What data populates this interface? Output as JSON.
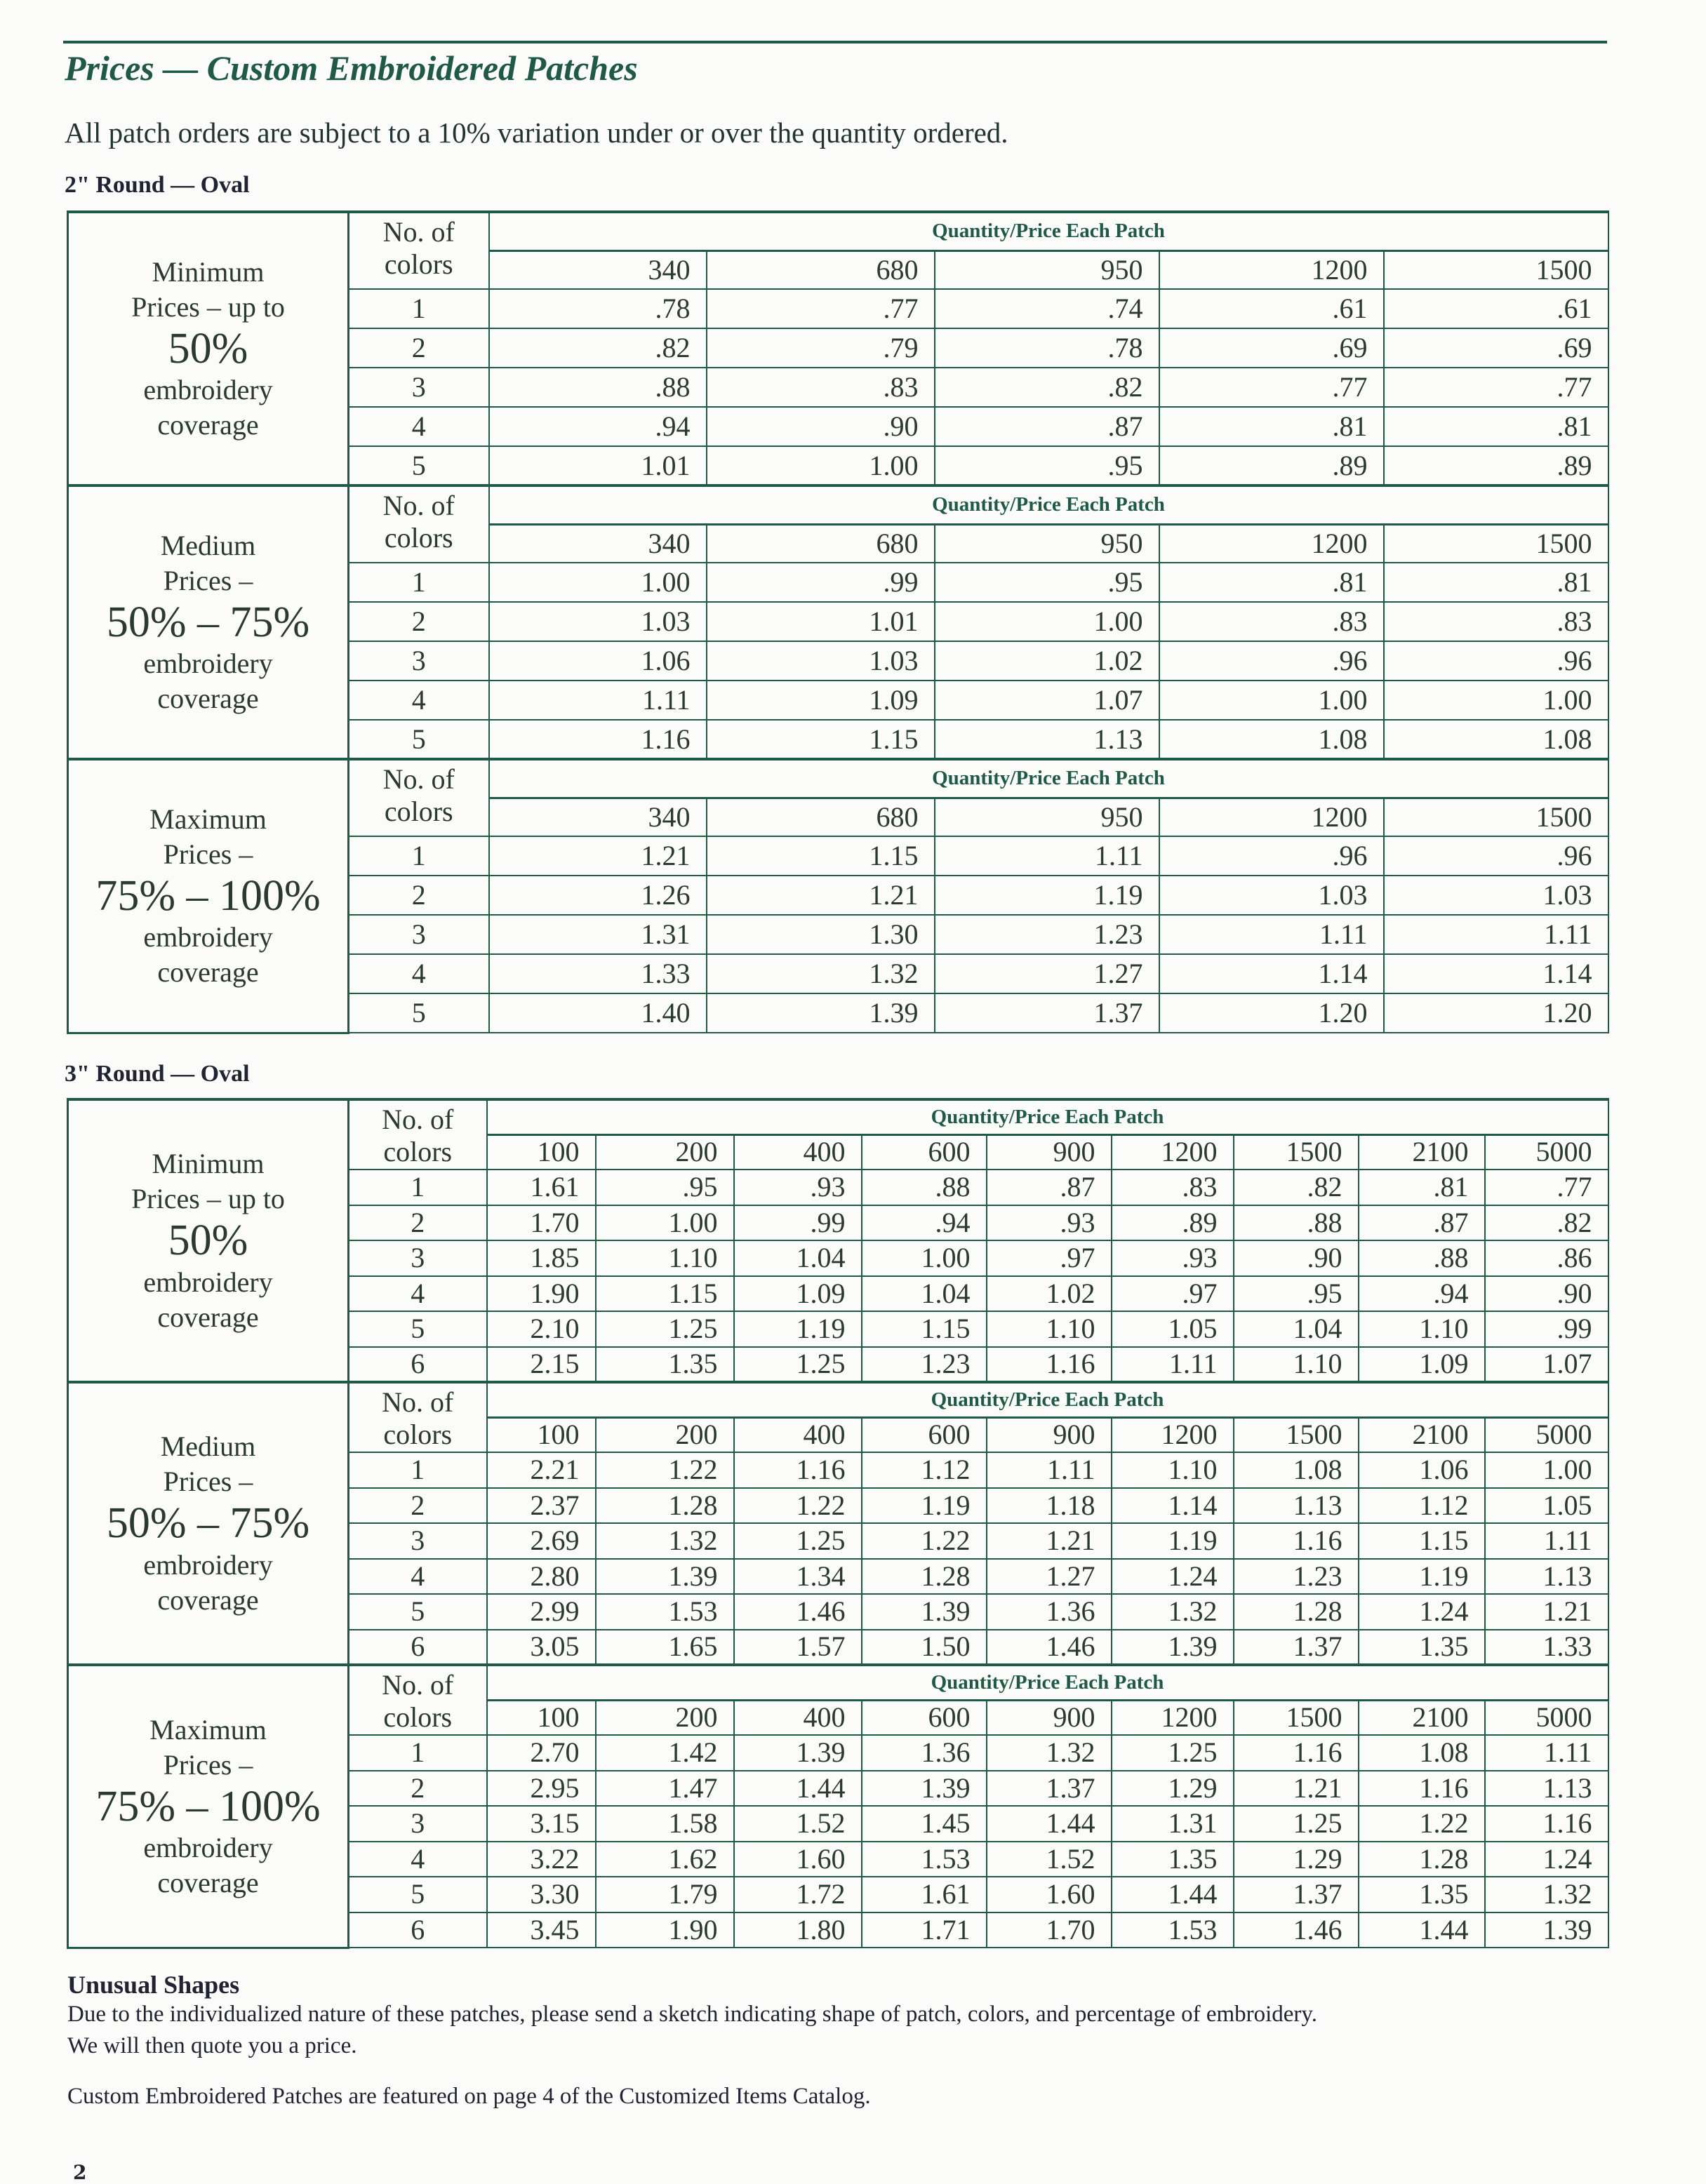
{
  "title": "Prices  — Custom Embroidered Patches",
  "subtitle": "All patch orders are subject to a 10% variation under or over the quantity ordered.",
  "colors_header": "No. of colors",
  "qty_header": "Quantity/Price Each Patch",
  "tables": [
    {
      "label": "2\" Round — Oval",
      "quantities": [
        "340",
        "680",
        "950",
        "1200",
        "1500"
      ],
      "sections": [
        {
          "line1": "Minimum",
          "line2": "Prices – up to",
          "big": "50%",
          "line3": "embroidery",
          "line4": "coverage",
          "rows": [
            [
              "1",
              ".78",
              ".77",
              ".74",
              ".61",
              ".61"
            ],
            [
              "2",
              ".82",
              ".79",
              ".78",
              ".69",
              ".69"
            ],
            [
              "3",
              ".88",
              ".83",
              ".82",
              ".77",
              ".77"
            ],
            [
              "4",
              ".94",
              ".90",
              ".87",
              ".81",
              ".81"
            ],
            [
              "5",
              "1.01",
              "1.00",
              ".95",
              ".89",
              ".89"
            ]
          ]
        },
        {
          "line1": "Medium",
          "line2": "Prices –",
          "big": "50% – 75%",
          "line3": "embroidery",
          "line4": "coverage",
          "rows": [
            [
              "1",
              "1.00",
              ".99",
              ".95",
              ".81",
              ".81"
            ],
            [
              "2",
              "1.03",
              "1.01",
              "1.00",
              ".83",
              ".83"
            ],
            [
              "3",
              "1.06",
              "1.03",
              "1.02",
              ".96",
              ".96"
            ],
            [
              "4",
              "1.11",
              "1.09",
              "1.07",
              "1.00",
              "1.00"
            ],
            [
              "5",
              "1.16",
              "1.15",
              "1.13",
              "1.08",
              "1.08"
            ]
          ]
        },
        {
          "line1": "Maximum",
          "line2": "Prices –",
          "big": "75% – 100%",
          "line3": "embroidery",
          "line4": "coverage",
          "rows": [
            [
              "1",
              "1.21",
              "1.15",
              "1.11",
              ".96",
              ".96"
            ],
            [
              "2",
              "1.26",
              "1.21",
              "1.19",
              "1.03",
              "1.03"
            ],
            [
              "3",
              "1.31",
              "1.30",
              "1.23",
              "1.11",
              "1.11"
            ],
            [
              "4",
              "1.33",
              "1.32",
              "1.27",
              "1.14",
              "1.14"
            ],
            [
              "5",
              "1.40",
              "1.39",
              "1.37",
              "1.20",
              "1.20"
            ]
          ]
        }
      ]
    },
    {
      "label": "3\" Round — Oval",
      "quantities": [
        "100",
        "200",
        "400",
        "600",
        "900",
        "1200",
        "1500",
        "2100",
        "5000"
      ],
      "sections": [
        {
          "line1": "Minimum",
          "line2": "Prices – up to",
          "big": "50%",
          "line3": "embroidery",
          "line4": "coverage",
          "rows": [
            [
              "1",
              "1.61",
              ".95",
              ".93",
              ".88",
              ".87",
              ".83",
              ".82",
              ".81",
              ".77"
            ],
            [
              "2",
              "1.70",
              "1.00",
              ".99",
              ".94",
              ".93",
              ".89",
              ".88",
              ".87",
              ".82"
            ],
            [
              "3",
              "1.85",
              "1.10",
              "1.04",
              "1.00",
              ".97",
              ".93",
              ".90",
              ".88",
              ".86"
            ],
            [
              "4",
              "1.90",
              "1.15",
              "1.09",
              "1.04",
              "1.02",
              ".97",
              ".95",
              ".94",
              ".90"
            ],
            [
              "5",
              "2.10",
              "1.25",
              "1.19",
              "1.15",
              "1.10",
              "1.05",
              "1.04",
              "1.10",
              ".99"
            ],
            [
              "6",
              "2.15",
              "1.35",
              "1.25",
              "1.23",
              "1.16",
              "1.11",
              "1.10",
              "1.09",
              "1.07"
            ]
          ]
        },
        {
          "line1": "Medium",
          "line2": "Prices –",
          "big": "50% – 75%",
          "line3": "embroidery",
          "line4": "coverage",
          "rows": [
            [
              "1",
              "2.21",
              "1.22",
              "1.16",
              "1.12",
              "1.11",
              "1.10",
              "1.08",
              "1.06",
              "1.00"
            ],
            [
              "2",
              "2.37",
              "1.28",
              "1.22",
              "1.19",
              "1.18",
              "1.14",
              "1.13",
              "1.12",
              "1.05"
            ],
            [
              "3",
              "2.69",
              "1.32",
              "1.25",
              "1.22",
              "1.21",
              "1.19",
              "1.16",
              "1.15",
              "1.11"
            ],
            [
              "4",
              "2.80",
              "1.39",
              "1.34",
              "1.28",
              "1.27",
              "1.24",
              "1.23",
              "1.19",
              "1.13"
            ],
            [
              "5",
              "2.99",
              "1.53",
              "1.46",
              "1.39",
              "1.36",
              "1.32",
              "1.28",
              "1.24",
              "1.21"
            ],
            [
              "6",
              "3.05",
              "1.65",
              "1.57",
              "1.50",
              "1.46",
              "1.39",
              "1.37",
              "1.35",
              "1.33"
            ]
          ]
        },
        {
          "line1": "Maximum",
          "line2": "Prices –",
          "big": "75% – 100%",
          "line3": "embroidery",
          "line4": "coverage",
          "rows": [
            [
              "1",
              "2.70",
              "1.42",
              "1.39",
              "1.36",
              "1.32",
              "1.25",
              "1.16",
              "1.08",
              "1.11"
            ],
            [
              "2",
              "2.95",
              "1.47",
              "1.44",
              "1.39",
              "1.37",
              "1.29",
              "1.21",
              "1.16",
              "1.13"
            ],
            [
              "3",
              "3.15",
              "1.58",
              "1.52",
              "1.45",
              "1.44",
              "1.31",
              "1.25",
              "1.22",
              "1.16"
            ],
            [
              "4",
              "3.22",
              "1.62",
              "1.60",
              "1.53",
              "1.52",
              "1.35",
              "1.29",
              "1.28",
              "1.24"
            ],
            [
              "5",
              "3.30",
              "1.79",
              "1.72",
              "1.61",
              "1.60",
              "1.44",
              "1.37",
              "1.35",
              "1.32"
            ],
            [
              "6",
              "3.45",
              "1.90",
              "1.80",
              "1.71",
              "1.70",
              "1.53",
              "1.46",
              "1.44",
              "1.39"
            ]
          ]
        }
      ]
    }
  ],
  "unusual": {
    "heading": "Unusual Shapes",
    "line1": "Due to the individualized nature of these patches, please send a sketch indicating shape of patch, colors, and percentage of embroidery.",
    "line2": "We will then quote you a price."
  },
  "featured_note": "Custom Embroidered Patches are featured on page 4 of the Customized Items Catalog.",
  "page_number": "2",
  "colors": {
    "ink_green": "#1e5a47"
  }
}
